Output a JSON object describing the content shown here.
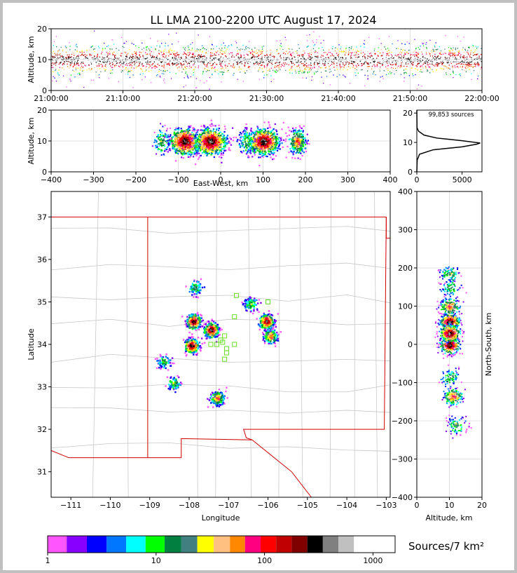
{
  "figure": {
    "title": "LL LMA 2100-2200 UTC August 17, 2024",
    "colors": {
      "frame": "#c0c0c0",
      "background": "#ffffff",
      "state_border": "#d00000",
      "county_border": "#c8c8c8",
      "station_marker": "#66dd22",
      "fit_curve": "#000000"
    }
  },
  "chart_data": [
    {
      "id": "time_height",
      "type": "scatter",
      "title": "",
      "xlabel": "",
      "ylabel": "Altitude, km",
      "xlim": [
        "21:00:00",
        "22:00:00"
      ],
      "ylim": [
        0,
        20
      ],
      "x_ticks": [
        "21:00:00",
        "21:10:00",
        "21:20:00",
        "21:30:00",
        "21:40:00",
        "21:50:00",
        "22:00:00"
      ],
      "y_ticks": [
        0,
        10,
        20
      ],
      "grid": true,
      "band": {
        "altitude_center_km": 10,
        "altitude_spread_km": 2.5,
        "time_start": "21:00:00",
        "time_end": "22:00:00"
      }
    },
    {
      "id": "ew_height",
      "type": "scatter",
      "title": "",
      "xlabel": "East-West, km",
      "ylabel": "Altitude, km",
      "xlim": [
        -400,
        400
      ],
      "ylim": [
        0,
        20
      ],
      "x_ticks": [
        -400,
        -300,
        -200,
        -100,
        0,
        100,
        200,
        300,
        400
      ],
      "y_ticks": [
        0,
        10,
        20
      ],
      "grid": true,
      "clusters": [
        {
          "x_km": -85,
          "alt_km": 10,
          "density": "high"
        },
        {
          "x_km": -25,
          "alt_km": 10,
          "density": "high"
        },
        {
          "x_km": 100,
          "alt_km": 10,
          "density": "high"
        },
        {
          "x_km": 180,
          "alt_km": 10,
          "density": "medium"
        },
        {
          "x_km": 60,
          "alt_km": 10,
          "density": "low"
        }
      ]
    },
    {
      "id": "altitude_histogram",
      "type": "line",
      "title": "",
      "annotation": "99,853 sources",
      "xlabel": "",
      "ylabel": "",
      "xlim": [
        0,
        7200
      ],
      "ylim": [
        0,
        21
      ],
      "x_ticks": [
        0,
        5000
      ],
      "y_ticks": [
        0,
        10,
        20
      ],
      "grid": false,
      "series": [
        {
          "x": [
            0,
            40,
            300,
            1800,
            5000,
            6600,
            7000,
            5000,
            2200,
            800,
            200,
            20,
            0
          ],
          "y": [
            0,
            4,
            6,
            7.5,
            8.5,
            9.4,
            9.8,
            10.6,
            11.5,
            12.5,
            13.8,
            15,
            21
          ]
        }
      ]
    },
    {
      "id": "plan_view",
      "type": "heatmap",
      "title": "",
      "xlabel": "Longitude",
      "ylabel": "Latitude",
      "xlim": [
        -111.5,
        -102.9
      ],
      "ylim": [
        30.4,
        37.6
      ],
      "x_ticks": [
        -111,
        -110,
        -109,
        -108,
        -107,
        -106,
        -105,
        -104,
        -103
      ],
      "y_ticks": [
        31,
        32,
        33,
        34,
        35,
        36,
        37
      ],
      "grid": false,
      "clusters": [
        {
          "lon": -107.9,
          "lat": 34.55,
          "density": "high"
        },
        {
          "lon": -107.95,
          "lat": 33.98,
          "density": "high"
        },
        {
          "lon": -107.45,
          "lat": 34.35,
          "density": "high"
        },
        {
          "lon": -106.05,
          "lat": 34.55,
          "density": "high"
        },
        {
          "lon": -105.95,
          "lat": 34.2,
          "density": "medium"
        },
        {
          "lon": -107.3,
          "lat": 32.75,
          "density": "medium"
        },
        {
          "lon": -107.85,
          "lat": 35.35,
          "density": "low"
        },
        {
          "lon": -108.65,
          "lat": 33.6,
          "density": "low"
        },
        {
          "lon": -108.4,
          "lat": 33.1,
          "density": "low"
        },
        {
          "lon": -106.45,
          "lat": 34.95,
          "density": "low"
        }
      ],
      "stations": [
        {
          "lon": -107.15,
          "lat": 34.05
        },
        {
          "lon": -107.1,
          "lat": 34.2
        },
        {
          "lon": -107.3,
          "lat": 34.0
        },
        {
          "lon": -107.45,
          "lat": 34.0
        },
        {
          "lon": -107.05,
          "lat": 33.9
        },
        {
          "lon": -107.05,
          "lat": 33.8
        },
        {
          "lon": -107.1,
          "lat": 33.65
        },
        {
          "lon": -106.8,
          "lat": 35.15
        },
        {
          "lon": -106.0,
          "lat": 35.0
        },
        {
          "lon": -106.85,
          "lat": 34.65
        },
        {
          "lon": -106.85,
          "lat": 34.0
        },
        {
          "lon": -107.2,
          "lat": 34.1
        }
      ]
    },
    {
      "id": "ns_height",
      "type": "scatter",
      "title": "",
      "xlabel": "Altitude, km",
      "ylabel": "North-South, km",
      "xlim": [
        0,
        20
      ],
      "ylim": [
        -400,
        400
      ],
      "x_ticks": [
        0,
        10,
        20
      ],
      "y_ticks": [
        -400,
        -300,
        -200,
        -100,
        0,
        100,
        200,
        300,
        400
      ],
      "grid": true,
      "clusters": [
        {
          "y_km": 60,
          "alt_km": 10,
          "density": "high"
        },
        {
          "y_km": 0,
          "alt_km": 10,
          "density": "high"
        },
        {
          "y_km": 30,
          "alt_km": 10,
          "density": "high"
        },
        {
          "y_km": -135,
          "alt_km": 11,
          "density": "medium"
        },
        {
          "y_km": -85,
          "alt_km": 10,
          "density": "low"
        },
        {
          "y_km": 100,
          "alt_km": 10,
          "density": "medium"
        },
        {
          "y_km": 150,
          "alt_km": 10,
          "density": "low"
        },
        {
          "y_km": 185,
          "alt_km": 10,
          "density": "low"
        },
        {
          "y_km": -210,
          "alt_km": 12,
          "density": "low"
        }
      ]
    },
    {
      "id": "colorbar",
      "type": "bar",
      "title": "",
      "label": "Sources/7 km²",
      "scale": "log",
      "range": [
        1,
        1600
      ],
      "tick_labels": [
        "1",
        "10",
        "100",
        "1000"
      ],
      "colors": [
        "#ff55ff",
        "#8800ff",
        "#0000ff",
        "#0077ff",
        "#00ffff",
        "#00ff00",
        "#008040",
        "#408080",
        "#ffff00",
        "#ffc080",
        "#ff8800",
        "#ff0080",
        "#ff0000",
        "#c00000",
        "#800000",
        "#000000",
        "#808080",
        "#c0c0c0",
        "#ffffff"
      ]
    }
  ]
}
